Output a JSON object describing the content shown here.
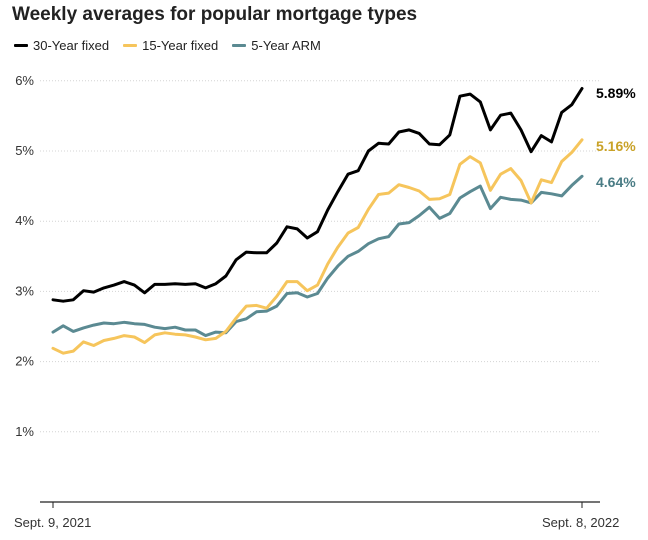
{
  "chart_data": {
    "type": "line",
    "title": "Weekly averages for popular mortgage types",
    "xlabel": "",
    "ylabel": "",
    "y_ticks": [
      "1%",
      "2%",
      "3%",
      "4%",
      "5%",
      "6%"
    ],
    "y_tick_values": [
      1,
      2,
      3,
      4,
      5,
      6
    ],
    "ylim": [
      0,
      6
    ],
    "x_ticks": [
      "Sept. 9, 2021",
      "Sept. 8, 2022"
    ],
    "grid": true,
    "legend": "top-left",
    "series": [
      {
        "name": "30-Year fixed",
        "color": "#000000",
        "end_label": "5.89%",
        "values": [
          2.88,
          2.86,
          2.88,
          3.01,
          2.99,
          3.05,
          3.09,
          3.14,
          3.09,
          2.98,
          3.1,
          3.1,
          3.11,
          3.1,
          3.11,
          3.05,
          3.11,
          3.22,
          3.45,
          3.56,
          3.55,
          3.55,
          3.69,
          3.92,
          3.89,
          3.76,
          3.85,
          4.16,
          4.42,
          4.67,
          4.72,
          5.0,
          5.11,
          5.1,
          5.27,
          5.3,
          5.25,
          5.1,
          5.09,
          5.23,
          5.78,
          5.81,
          5.7,
          5.3,
          5.51,
          5.54,
          5.3,
          4.99,
          5.22,
          5.13,
          5.55,
          5.66,
          5.89
        ]
      },
      {
        "name": "15-Year fixed",
        "color": "#f6c55c",
        "end_label": "5.16%",
        "values": [
          2.19,
          2.12,
          2.15,
          2.28,
          2.23,
          2.3,
          2.33,
          2.37,
          2.35,
          2.27,
          2.38,
          2.41,
          2.39,
          2.38,
          2.35,
          2.31,
          2.33,
          2.43,
          2.62,
          2.79,
          2.8,
          2.76,
          2.93,
          3.14,
          3.14,
          3.01,
          3.09,
          3.39,
          3.63,
          3.83,
          3.91,
          4.17,
          4.38,
          4.4,
          4.52,
          4.48,
          4.43,
          4.31,
          4.32,
          4.38,
          4.81,
          4.92,
          4.83,
          4.44,
          4.67,
          4.75,
          4.58,
          4.26,
          4.59,
          4.55,
          4.85,
          4.98,
          5.16
        ]
      },
      {
        "name": "5-Year ARM",
        "color": "#5b8a92",
        "end_label": "4.64%",
        "values": [
          2.42,
          2.51,
          2.43,
          2.48,
          2.52,
          2.55,
          2.54,
          2.56,
          2.54,
          2.53,
          2.49,
          2.47,
          2.49,
          2.45,
          2.45,
          2.37,
          2.42,
          2.41,
          2.57,
          2.61,
          2.71,
          2.72,
          2.79,
          2.97,
          2.98,
          2.92,
          2.97,
          3.19,
          3.36,
          3.5,
          3.57,
          3.68,
          3.75,
          3.78,
          3.96,
          3.98,
          4.08,
          4.2,
          4.04,
          4.11,
          4.33,
          4.42,
          4.5,
          4.18,
          4.34,
          4.31,
          4.3,
          4.26,
          4.41,
          4.39,
          4.36,
          4.51,
          4.64
        ]
      }
    ]
  }
}
